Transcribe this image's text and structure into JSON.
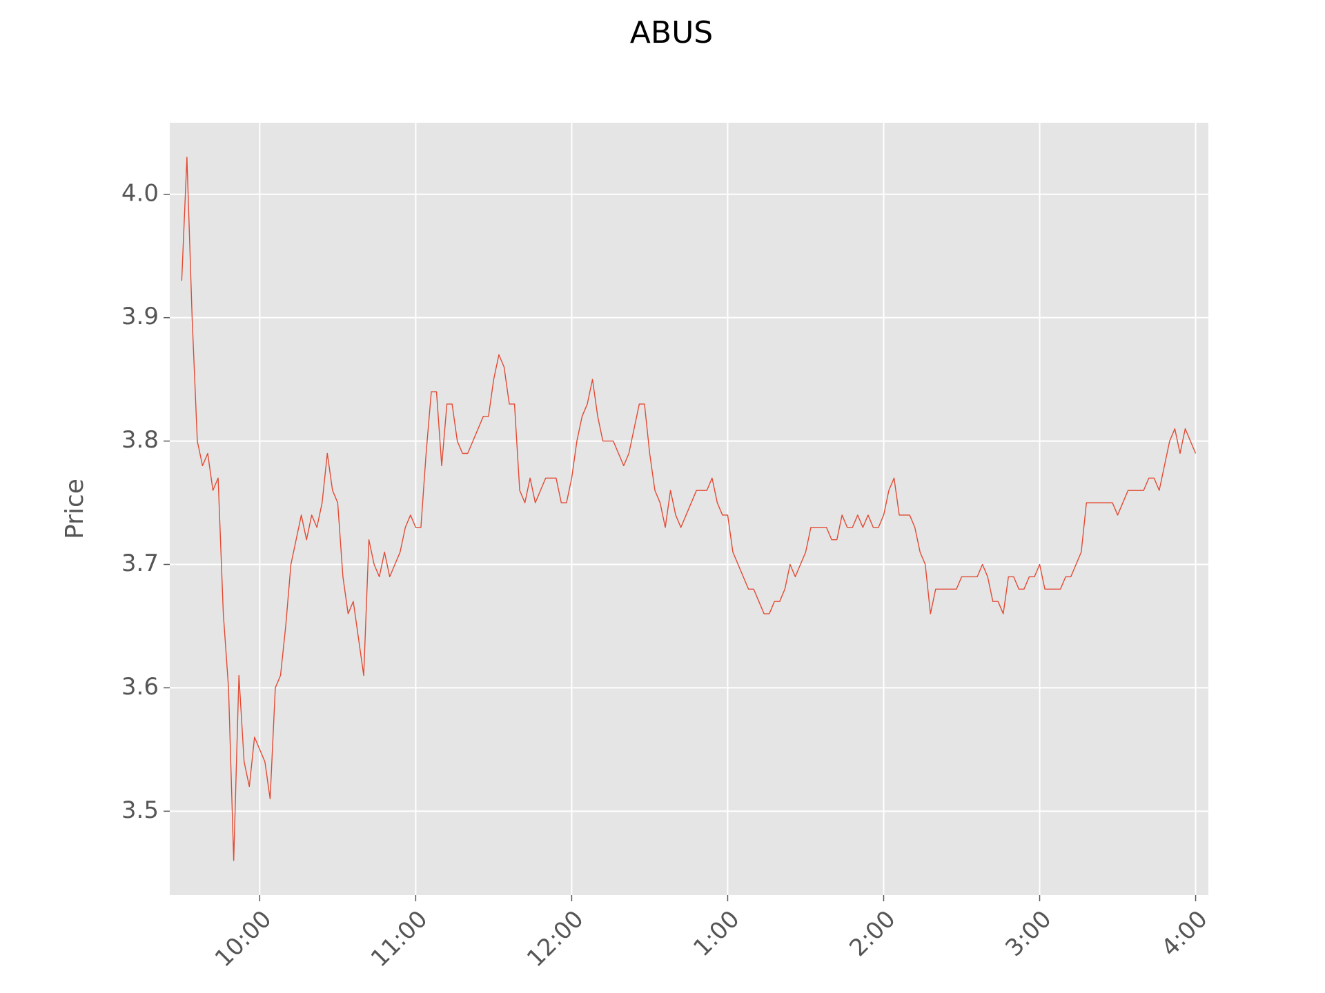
{
  "chart_data": {
    "type": "line",
    "title": "ABUS",
    "ylabel": "Price",
    "color": "#E24A33",
    "grid": true,
    "x": [
      570,
      572,
      574,
      576,
      578,
      580,
      582,
      584,
      586,
      588,
      590,
      592,
      594,
      596,
      598,
      600,
      602,
      604,
      606,
      608,
      610,
      612,
      614,
      616,
      618,
      620,
      622,
      624,
      626,
      628,
      630,
      632,
      634,
      636,
      638,
      640,
      642,
      644,
      646,
      648,
      650,
      652,
      654,
      656,
      658,
      660,
      662,
      664,
      666,
      668,
      670,
      672,
      674,
      676,
      678,
      680,
      682,
      684,
      686,
      688,
      690,
      692,
      694,
      696,
      698,
      700,
      702,
      704,
      706,
      708,
      710,
      712,
      714,
      716,
      718,
      720,
      722,
      724,
      726,
      728,
      730,
      732,
      734,
      736,
      738,
      740,
      742,
      744,
      746,
      748,
      750,
      752,
      754,
      756,
      758,
      760,
      762,
      764,
      766,
      768,
      770,
      772,
      774,
      776,
      778,
      780,
      782,
      784,
      786,
      788,
      790,
      792,
      794,
      796,
      798,
      800,
      802,
      804,
      806,
      808,
      810,
      812,
      814,
      816,
      818,
      820,
      822,
      824,
      826,
      828,
      830,
      832,
      834,
      836,
      838,
      840,
      842,
      844,
      846,
      848,
      850,
      852,
      854,
      856,
      858,
      860,
      862,
      864,
      866,
      868,
      870,
      872,
      874,
      876,
      878,
      880,
      882,
      884,
      886,
      888,
      890,
      892,
      894,
      896,
      898,
      900,
      902,
      904,
      906,
      908,
      910,
      912,
      914,
      916,
      918,
      920,
      922,
      924,
      926,
      928,
      930,
      932,
      934,
      936,
      938,
      940,
      942,
      944,
      946,
      948,
      950,
      952,
      954,
      956,
      958,
      960
    ],
    "values": [
      3.93,
      4.03,
      3.9,
      3.8,
      3.78,
      3.79,
      3.76,
      3.77,
      3.66,
      3.6,
      3.46,
      3.61,
      3.54,
      3.52,
      3.56,
      3.55,
      3.54,
      3.51,
      3.6,
      3.61,
      3.65,
      3.7,
      3.72,
      3.74,
      3.72,
      3.74,
      3.73,
      3.75,
      3.79,
      3.76,
      3.75,
      3.69,
      3.66,
      3.67,
      3.64,
      3.61,
      3.72,
      3.7,
      3.69,
      3.71,
      3.69,
      3.7,
      3.71,
      3.73,
      3.74,
      3.73,
      3.73,
      3.79,
      3.84,
      3.84,
      3.78,
      3.83,
      3.83,
      3.8,
      3.79,
      3.79,
      3.8,
      3.81,
      3.82,
      3.82,
      3.85,
      3.87,
      3.86,
      3.83,
      3.83,
      3.76,
      3.75,
      3.77,
      3.75,
      3.76,
      3.77,
      3.77,
      3.77,
      3.75,
      3.75,
      3.77,
      3.8,
      3.82,
      3.83,
      3.85,
      3.82,
      3.8,
      3.8,
      3.8,
      3.79,
      3.78,
      3.79,
      3.81,
      3.83,
      3.83,
      3.79,
      3.76,
      3.75,
      3.73,
      3.76,
      3.74,
      3.73,
      3.74,
      3.75,
      3.76,
      3.76,
      3.76,
      3.77,
      3.75,
      3.74,
      3.74,
      3.71,
      3.7,
      3.69,
      3.68,
      3.68,
      3.67,
      3.66,
      3.66,
      3.67,
      3.67,
      3.68,
      3.7,
      3.69,
      3.7,
      3.71,
      3.73,
      3.73,
      3.73,
      3.73,
      3.72,
      3.72,
      3.74,
      3.73,
      3.73,
      3.74,
      3.73,
      3.74,
      3.73,
      3.73,
      3.74,
      3.76,
      3.77,
      3.74,
      3.74,
      3.74,
      3.73,
      3.71,
      3.7,
      3.66,
      3.68,
      3.68,
      3.68,
      3.68,
      3.68,
      3.69,
      3.69,
      3.69,
      3.69,
      3.7,
      3.69,
      3.67,
      3.67,
      3.66,
      3.69,
      3.69,
      3.68,
      3.68,
      3.69,
      3.69,
      3.7,
      3.68,
      3.68,
      3.68,
      3.68,
      3.69,
      3.69,
      3.7,
      3.71,
      3.75,
      3.75,
      3.75,
      3.75,
      3.75,
      3.75,
      3.74,
      3.75,
      3.76,
      3.76,
      3.76,
      3.76,
      3.77,
      3.77,
      3.76,
      3.78,
      3.8,
      3.81,
      3.79,
      3.81,
      3.8,
      3.79
    ],
    "xlim": [
      565.4,
      964.9
    ],
    "xticks": [
      {
        "value": 600,
        "label": "10:00"
      },
      {
        "value": 660,
        "label": "11:00"
      },
      {
        "value": 720,
        "label": "12:00"
      },
      {
        "value": 780,
        "label": "1:00"
      },
      {
        "value": 840,
        "label": "2:00"
      },
      {
        "value": 900,
        "label": "3:00"
      },
      {
        "value": 960,
        "label": "4:00"
      }
    ],
    "ylim": [
      3.432,
      4.058
    ],
    "yticks": [
      3.5,
      3.6,
      3.7,
      3.8,
      3.9,
      {
        "value": 4,
        "label": "4.0"
      }
    ]
  }
}
